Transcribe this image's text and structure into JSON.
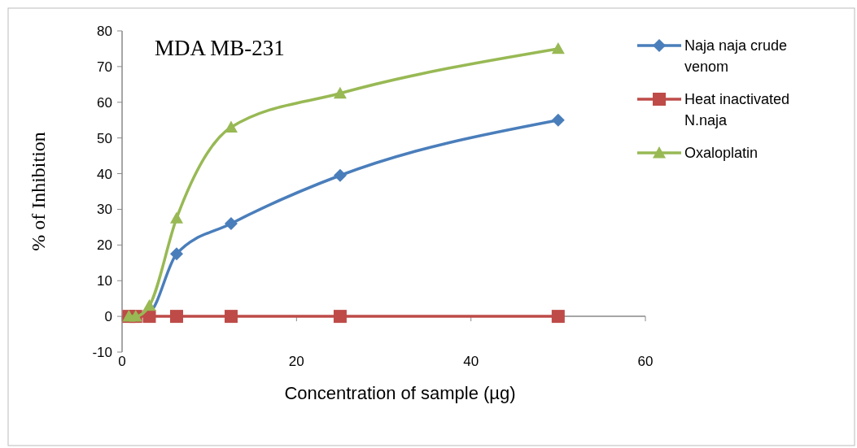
{
  "chart_data": {
    "type": "line",
    "title": "MDA MB-231",
    "xlabel": "Concentration of sample (µg)",
    "ylabel": "% of Inhibition",
    "x": [
      0.78,
      1.56,
      3.125,
      6.25,
      12.5,
      25,
      50
    ],
    "series": [
      {
        "name": "Naja naja crude venom",
        "color": "#4a7ebb",
        "marker": "diamond",
        "values": [
          0,
          0,
          1,
          17.5,
          26,
          39.5,
          55
        ]
      },
      {
        "name": "Heat inactivated N.naja",
        "color": "#be4b48",
        "marker": "square",
        "values": [
          0,
          0,
          0,
          0,
          0,
          0,
          0
        ]
      },
      {
        "name": "Oxaloplatin",
        "color": "#98b954",
        "marker": "triangle",
        "values": [
          0,
          0,
          3,
          27.5,
          53,
          62.5,
          75
        ]
      }
    ],
    "xlim": [
      0,
      60
    ],
    "xticks": [
      0,
      20,
      40,
      60
    ],
    "ylim": [
      -10,
      80
    ],
    "yticks": [
      -10,
      0,
      10,
      20,
      30,
      40,
      50,
      60,
      70,
      80
    ],
    "legend": "right"
  }
}
